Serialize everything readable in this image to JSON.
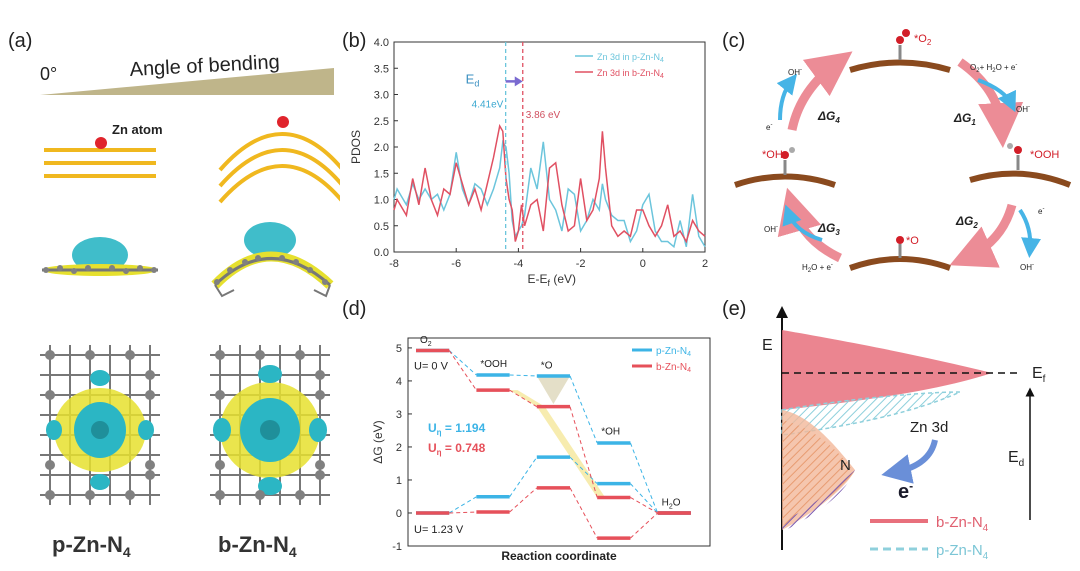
{
  "figure": {
    "panel_labels": {
      "a": "(a)",
      "b": "(b)",
      "c": "(c)",
      "d": "(d)",
      "e": "(e)"
    }
  },
  "panel_a": {
    "angle_start": "0°",
    "angle_title": "Angle of bending",
    "atom_label": "Zn atom",
    "label_planar": "p-Zn-N",
    "label_bent": "b-Zn-N",
    "subscript": "4",
    "colors": {
      "ribbon": "#f0b81f",
      "atom": "#e0242c",
      "cyan": "#2bb6c4",
      "yellow": "#e6e02e",
      "grey": "#808080",
      "wedge": "#bfb58a"
    }
  },
  "panel_b": {
    "ed_label": "E",
    "ed_sub": "d",
    "annot_p": "4.41eV",
    "annot_b": "3.86 eV",
    "colors": {
      "p": "#6cc5dc",
      "b": "#e05062"
    },
    "chart_data": {
      "type": "line",
      "title": "",
      "xlabel": "E-E",
      "xlabel_sub": "f",
      "xlabel_unit": " (eV)",
      "ylabel": "PDOS",
      "xlim": [
        -8,
        2
      ],
      "ylim": [
        0,
        4
      ],
      "xticks": [
        "-8",
        "-6",
        "-4",
        "-2",
        "0",
        "2"
      ],
      "yticks": [
        "0.0",
        "0.5",
        "1.0",
        "1.5",
        "2.0",
        "2.5",
        "3.0",
        "3.5",
        "4.0"
      ],
      "xtick_values": [
        -8,
        -6,
        -4,
        -2,
        0,
        2
      ],
      "ytick_values": [
        0,
        0.5,
        1,
        1.5,
        2,
        2.5,
        3,
        3.5,
        4
      ],
      "vlines": [
        -4.41,
        -3.86
      ],
      "series": [
        {
          "name": "Zn 3d in p-Zn-N",
          "sub": "4",
          "x": [
            -8,
            -7.9,
            -7.8,
            -7.6,
            -7.4,
            -7.2,
            -7.0,
            -6.8,
            -6.6,
            -6.4,
            -6.2,
            -6.0,
            -5.8,
            -5.6,
            -5.4,
            -5.2,
            -5.0,
            -4.8,
            -4.6,
            -4.5,
            -4.4,
            -4.3,
            -4.2,
            -4.1,
            -4.0,
            -3.9,
            -3.8,
            -3.6,
            -3.4,
            -3.2,
            -3.0,
            -2.8,
            -2.6,
            -2.4,
            -2.2,
            -2.0,
            -1.8,
            -1.6,
            -1.4,
            -1.3,
            -1.2,
            -1.0,
            -0.8,
            -0.6,
            -0.4,
            -0.2,
            0.0,
            0.2,
            0.4,
            0.6,
            0.8,
            1.0,
            1.2,
            1.4,
            1.6,
            1.8,
            2.0
          ],
          "values": [
            1.0,
            1.2,
            1.1,
            0.9,
            1.3,
            1.0,
            1.2,
            1.0,
            1.1,
            0.8,
            1.1,
            1.9,
            1.2,
            0.9,
            1.3,
            1.2,
            0.9,
            1.2,
            1.6,
            2.1,
            2.0,
            1.5,
            0.6,
            0.3,
            0.4,
            0.5,
            0.7,
            1.6,
            1.2,
            2.1,
            1.0,
            0.8,
            0.4,
            1.2,
            1.1,
            0.4,
            0.6,
            1.0,
            0.8,
            1.3,
            1.0,
            0.7,
            0.6,
            0.6,
            0.2,
            0.4,
            0.9,
            1.1,
            0.4,
            0.2,
            0.2,
            0.1,
            0.6,
            0.1,
            1.1,
            0.3,
            0.1
          ]
        },
        {
          "name": "Zn 3d in b-Zn-N",
          "sub": "4",
          "x": [
            -8,
            -7.9,
            -7.8,
            -7.6,
            -7.4,
            -7.2,
            -7.0,
            -6.8,
            -6.6,
            -6.4,
            -6.2,
            -6.0,
            -5.8,
            -5.6,
            -5.4,
            -5.2,
            -5.0,
            -4.8,
            -4.6,
            -4.5,
            -4.4,
            -4.3,
            -4.2,
            -4.1,
            -4.0,
            -3.9,
            -3.8,
            -3.6,
            -3.4,
            -3.2,
            -3.0,
            -2.8,
            -2.6,
            -2.4,
            -2.2,
            -2.0,
            -1.8,
            -1.6,
            -1.4,
            -1.3,
            -1.2,
            -1.0,
            -0.8,
            -0.6,
            -0.4,
            -0.2,
            0.0,
            0.2,
            0.4,
            0.6,
            0.8,
            1.0,
            1.2,
            1.4,
            1.6,
            1.8,
            2.0
          ],
          "values": [
            0.8,
            1.0,
            0.9,
            0.7,
            1.4,
            0.9,
            1.6,
            1.0,
            0.7,
            1.2,
            1.1,
            1.7,
            1.3,
            0.9,
            1.2,
            0.8,
            1.3,
            1.8,
            2.4,
            2.3,
            1.4,
            1.0,
            0.8,
            0.2,
            0.4,
            0.9,
            0.5,
            0.9,
            1.0,
            0.4,
            1.6,
            1.7,
            0.9,
            0.4,
            0.5,
            1.4,
            0.6,
            0.8,
            1.4,
            2.3,
            1.6,
            0.5,
            0.3,
            0.4,
            0.3,
            0.8,
            0.8,
            0.5,
            0.3,
            0.5,
            0.9,
            0.3,
            0.4,
            0.2,
            0.6,
            0.4,
            0.3
          ]
        }
      ]
    }
  },
  "panel_c": {
    "labels": {
      "o2": "*O",
      "o2_sub": "2",
      "ooh": "*OOH",
      "o": "*O",
      "oh": "*OH",
      "reagent_top_right": "O",
      "reagent_top_right_sub": "2",
      "reagent_top_right_rest": "+ H",
      "reagent_top_right_sub2": "2",
      "reagent_top_right_rest2": "O + e",
      "minus": "-",
      "oh_minus": "OH",
      "e_minus": "e",
      "h2o_e": "H",
      "h2o_e_sub": "2",
      "h2o_e_rest": "O + e",
      "dg": "ΔG",
      "dg1": "1",
      "dg2": "2",
      "dg3": "3",
      "dg4": "4"
    },
    "colors": {
      "pink": "#ec8c96",
      "blue": "#46b4e6",
      "graphene": "#8a4a1e",
      "red": "#d21e28"
    }
  },
  "panel_d": {
    "u0": "U= 0 V",
    "u123": "U= 1.23 V",
    "ueta_p": "U",
    "ueta_p_sub": "η",
    "ueta_p_val": " = 1.194",
    "ueta_b_val": " = 0.748",
    "colors": {
      "p": "#3cb4e6",
      "b": "#e6505a"
    },
    "chart_data": {
      "type": "line",
      "xlabel": "Reaction coordinate",
      "ylabel": "ΔG (eV)",
      "ylim": [
        -1,
        5.3
      ],
      "yticks": [
        "-1",
        "0",
        "1",
        "2",
        "3",
        "4",
        "5"
      ],
      "ytick_values": [
        -1,
        0,
        1,
        2,
        3,
        4,
        5
      ],
      "steps": [
        "O2",
        "*OOH",
        "*O",
        "*OH",
        "H2O"
      ],
      "step_labels": [
        {
          "text": "O",
          "sub": "2"
        },
        {
          "text": "*OOH",
          "sub": ""
        },
        {
          "text": "*O",
          "sub": ""
        },
        {
          "text": "*OH",
          "sub": ""
        },
        {
          "text": "H",
          "sub": "2",
          "rest": "O"
        }
      ],
      "series": [
        {
          "name": "p-Zn-N",
          "sub": "4",
          "u0": [
            4.92,
            4.18,
            4.15,
            2.12,
            0.0
          ],
          "u123": [
            0.0,
            0.49,
            1.69,
            0.89,
            0.0
          ]
        },
        {
          "name": "b-Zn-N",
          "sub": "4",
          "u0": [
            4.92,
            3.72,
            3.22,
            0.47,
            0.0
          ],
          "u123": [
            0.0,
            0.03,
            0.76,
            -0.76,
            0.0
          ]
        }
      ]
    }
  },
  "panel_e": {
    "axis_label": "E",
    "ef": "E",
    "ef_sub": "f",
    "ed": "E",
    "ed_sub": "d",
    "zn3d": "Zn  3d",
    "n": "N",
    "electron": "e",
    "electron_sup": "-",
    "legend_b": "b-Zn-N",
    "legend_p": "p-Zn-N",
    "legend_sub": "4",
    "colors": {
      "red_fill": "#e8707c",
      "cyan_hatch": "#8fd0dc",
      "orange_fill": "#f2b89a",
      "purple": "#7a5ab0",
      "arrow": "#6a8fd8"
    }
  }
}
